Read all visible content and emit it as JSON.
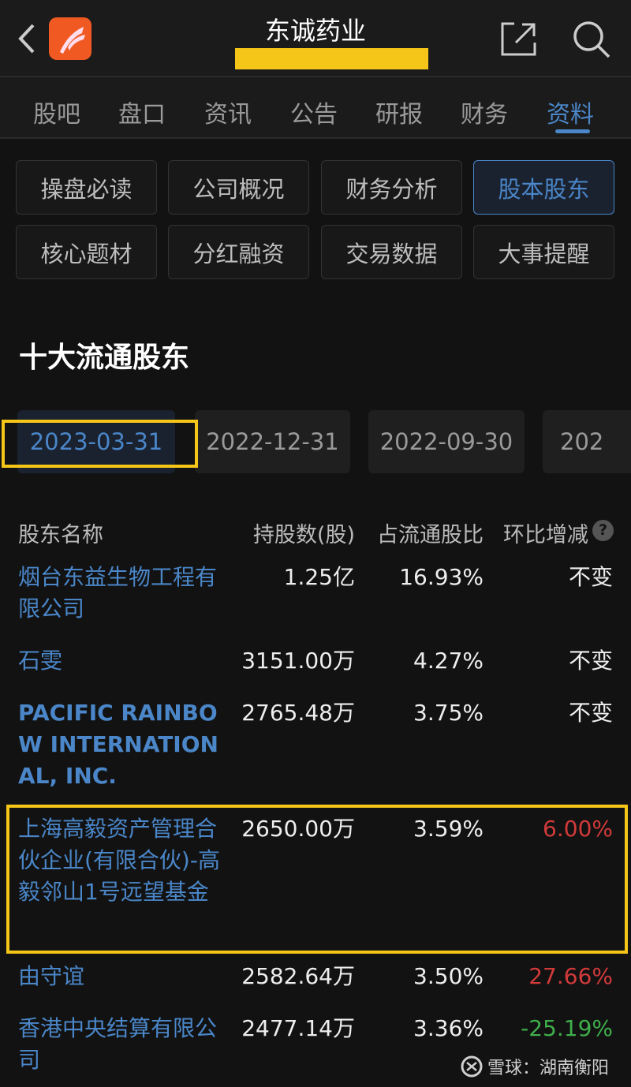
{
  "header": {
    "title": "东诚药业",
    "back_icon": "chevron-left-icon",
    "logo_icon": "app-logo-icon",
    "share_icon": "share-icon",
    "search_icon": "search-icon"
  },
  "tabs": [
    {
      "label": "股吧"
    },
    {
      "label": "盘口"
    },
    {
      "label": "资讯"
    },
    {
      "label": "公告"
    },
    {
      "label": "研报"
    },
    {
      "label": "财务"
    },
    {
      "label": "资料",
      "active": true
    }
  ],
  "sub_buttons": [
    {
      "label": "操盘必读"
    },
    {
      "label": "公司概况"
    },
    {
      "label": "财务分析"
    },
    {
      "label": "股本股东",
      "active": true
    },
    {
      "label": "核心题材"
    },
    {
      "label": "分红融资"
    },
    {
      "label": "交易数据"
    },
    {
      "label": "大事提醒"
    }
  ],
  "section_title": "十大流通股东",
  "dates": [
    {
      "label": "2023-03-31",
      "active": true
    },
    {
      "label": "2022-12-31"
    },
    {
      "label": "2022-09-30"
    },
    {
      "label": "202"
    }
  ],
  "table": {
    "headers": {
      "name": "股东名称",
      "shares": "持股数(股)",
      "ratio": "占流通股比",
      "change": "环比增减"
    },
    "rows": [
      {
        "name": "烟台东益生物工程有限公司",
        "shares": "1.25亿",
        "ratio": "16.93%",
        "change": "不变",
        "trend": "none"
      },
      {
        "name": "石雯",
        "shares": "3151.00万",
        "ratio": "4.27%",
        "change": "不变",
        "trend": "none"
      },
      {
        "name": "PACIFIC RAINBOW INTERNATIONAL, INC.",
        "shares": "2765.48万",
        "ratio": "3.75%",
        "change": "不变",
        "trend": "none"
      },
      {
        "name": "上海高毅资产管理合伙企业(有限合伙)-高毅邻山1号远望基金",
        "shares": "2650.00万",
        "ratio": "3.59%",
        "change": "6.00%",
        "trend": "up"
      },
      {
        "name": "由守谊",
        "shares": "2582.64万",
        "ratio": "3.50%",
        "change": "27.66%",
        "trend": "up"
      },
      {
        "name": "香港中央结算有限公司",
        "shares": "2477.14万",
        "ratio": "3.36%",
        "change": "-25.19%",
        "trend": "down"
      }
    ]
  },
  "watermark": "雪球：湖南衡阳",
  "colors": {
    "accent": "#4a86c8",
    "up": "#d23a3a",
    "down": "#3fae4a",
    "highlight": "#f5c518"
  }
}
